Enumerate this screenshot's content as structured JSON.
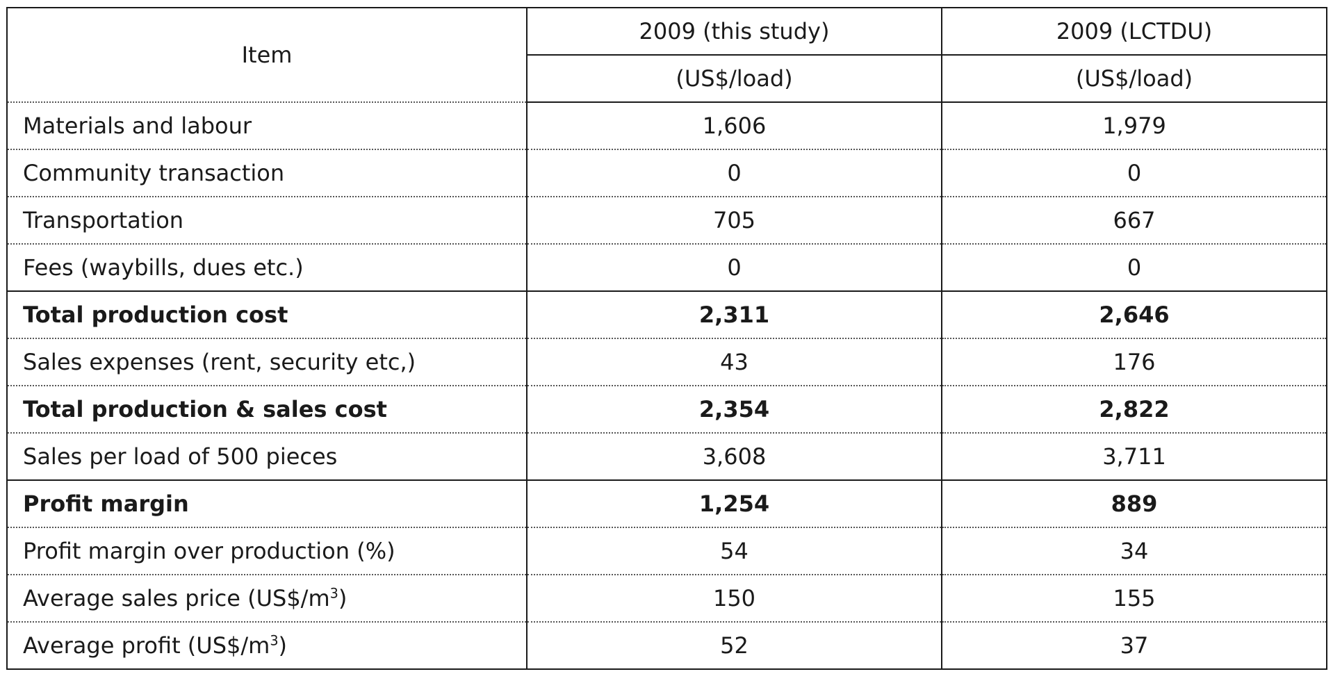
{
  "table": {
    "header": {
      "item": "Item",
      "col1": "2009 (this study)",
      "col2": "2009 (LCTDU)",
      "unit1": "(US$/load)",
      "unit2": "(US$/load)"
    },
    "rows": [
      {
        "label": "Materials and labour",
        "v1": "1,606",
        "v2": "1,979",
        "bold": false
      },
      {
        "label": "Community transaction",
        "v1": "0",
        "v2": "0",
        "bold": false
      },
      {
        "label": "Transportation",
        "v1": "705",
        "v2": "667",
        "bold": false
      },
      {
        "label": "Fees (waybills, dues etc.)",
        "v1": "0",
        "v2": "0",
        "bold": false
      },
      {
        "label": "Total production cost",
        "v1": "2,311",
        "v2": "2,646",
        "bold": true
      },
      {
        "label": "Sales expenses (rent, security etc,)",
        "v1": "43",
        "v2": "176",
        "bold": false
      },
      {
        "label": "Total production & sales cost",
        "v1": "2,354",
        "v2": "2,822",
        "bold": true
      },
      {
        "label": "Sales per load of 500 pieces",
        "v1": "3,608",
        "v2": "3,711",
        "bold": false
      },
      {
        "label": "Profit margin",
        "v1": "1,254",
        "v2": "889",
        "bold": true
      },
      {
        "label": "Profit margin over production (%)",
        "v1": "54",
        "v2": "34",
        "bold": false
      },
      {
        "label_main": "Average sales price (US$/m",
        "label_sup": "3",
        "label_end": ")",
        "v1": "150",
        "v2": "155",
        "bold": false
      },
      {
        "label_main": "Average profit (US$/m",
        "label_sup": "3",
        "label_end": ")",
        "v1": "52",
        "v2": "37",
        "bold": false
      }
    ]
  }
}
